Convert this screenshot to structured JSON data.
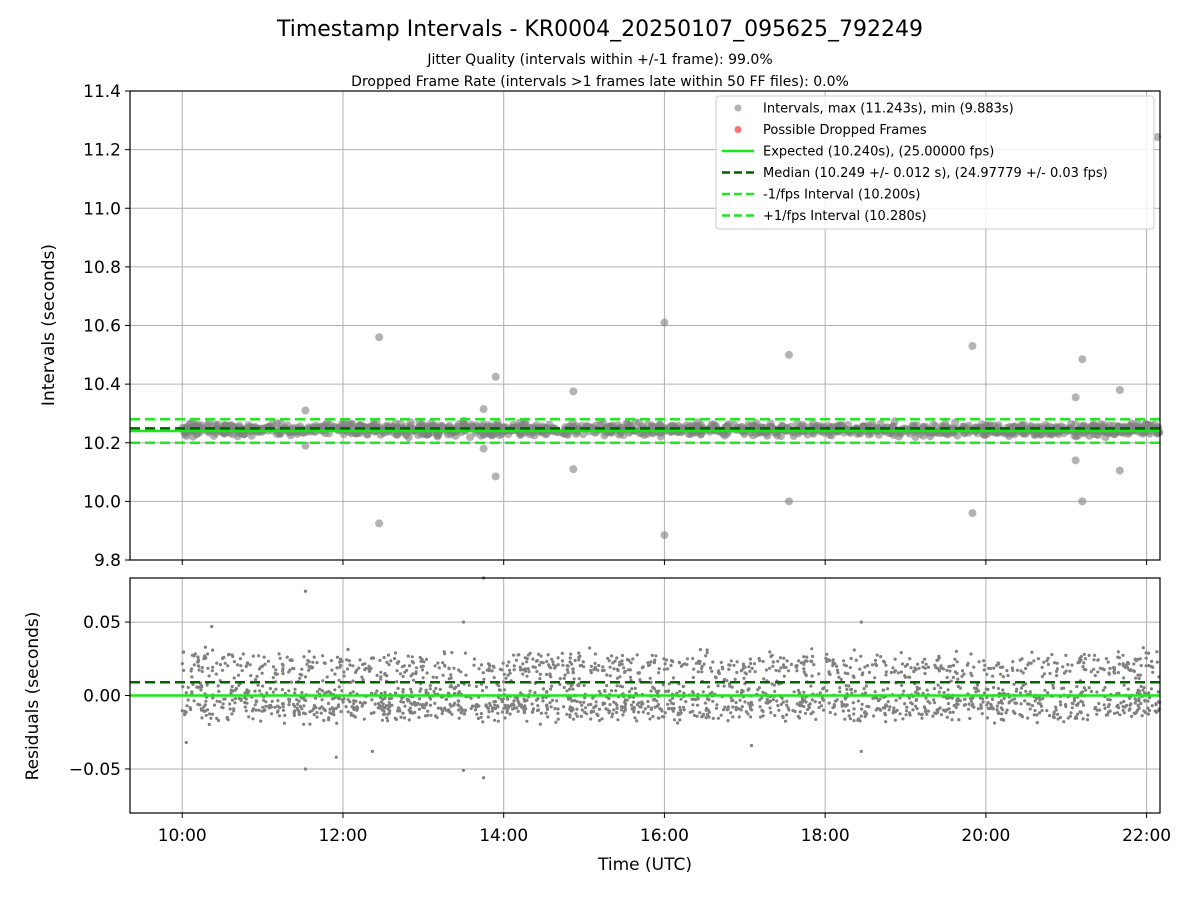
{
  "title": "Timestamp Intervals - KR0004_20250107_095625_792249",
  "subtitle_1": "Jitter Quality (intervals within +/-1 frame): 99.0%",
  "subtitle_2": "Dropped Frame Rate (intervals >1 frames late within 50 FF files): 0.0%",
  "colors": {
    "scatter": "#808080",
    "dropped": "#ff4d4d",
    "expected": "#17e817",
    "median": "#006400",
    "fps_interval": "#22e822",
    "grid": "#b0b0b0"
  },
  "chart_data": [
    {
      "type": "scatter",
      "panel": "top",
      "ylabel": "Intervals (seconds)",
      "xlabel": "",
      "ylim": [
        9.8,
        11.4
      ],
      "xlim": [
        "09:21",
        "22:10"
      ],
      "yticks": [
        "9.8",
        "10.0",
        "10.2",
        "10.4",
        "10.6",
        "10.8",
        "11.0",
        "11.2",
        "11.4"
      ],
      "grid": true,
      "legend_position": "upper-right",
      "legend": [
        {
          "key": "intervals",
          "label": "Intervals, max (11.243s), min (9.883s)"
        },
        {
          "key": "dropped",
          "label": "Possible Dropped Frames"
        },
        {
          "key": "expected",
          "label": "Expected (10.240s), (25.00000 fps)"
        },
        {
          "key": "median",
          "label": "Median (10.249 +/- 0.012 s), (24.97779 +/- 0.03 fps)"
        },
        {
          "key": "minus",
          "label": "-1/fps Interval (10.200s)"
        },
        {
          "key": "plus",
          "label": "+1/fps Interval (10.280s)"
        }
      ],
      "lines": {
        "expected": 10.24,
        "median": 10.249,
        "minus_fps": 10.2,
        "plus_fps": 10.28
      },
      "band": {
        "center": 10.245,
        "spread": 0.022,
        "x_start": "10:00",
        "x_end": "22:10"
      },
      "outliers": [
        {
          "x": "11:32",
          "y": 10.31
        },
        {
          "x": "11:32",
          "y": 10.19
        },
        {
          "x": "12:27",
          "y": 10.56
        },
        {
          "x": "12:27",
          "y": 9.925
        },
        {
          "x": "13:45",
          "y": 10.315
        },
        {
          "x": "13:45",
          "y": 10.18
        },
        {
          "x": "13:54",
          "y": 10.425
        },
        {
          "x": "13:54",
          "y": 10.085
        },
        {
          "x": "14:52",
          "y": 10.375
        },
        {
          "x": "14:52",
          "y": 10.11
        },
        {
          "x": "16:00",
          "y": 10.61
        },
        {
          "x": "16:00",
          "y": 9.885
        },
        {
          "x": "17:33",
          "y": 10.5
        },
        {
          "x": "17:33",
          "y": 10.0
        },
        {
          "x": "19:50",
          "y": 10.53
        },
        {
          "x": "19:50",
          "y": 9.96
        },
        {
          "x": "21:07",
          "y": 10.355
        },
        {
          "x": "21:07",
          "y": 10.14
        },
        {
          "x": "21:12",
          "y": 10.485
        },
        {
          "x": "21:12",
          "y": 10.0
        },
        {
          "x": "21:40",
          "y": 10.38
        },
        {
          "x": "21:40",
          "y": 10.105
        },
        {
          "x": "22:08",
          "y": 11.243
        }
      ]
    },
    {
      "type": "scatter",
      "panel": "bottom",
      "ylabel": "Residuals (seconds)",
      "xlabel": "Time (UTC)",
      "ylim": [
        -0.08,
        0.08
      ],
      "xlim": [
        "09:21",
        "22:10"
      ],
      "yticks": [
        "−0.05",
        "0.00",
        "0.05"
      ],
      "ytick_values": [
        -0.05,
        0,
        0.05
      ],
      "xticks": [
        "10:00",
        "12:00",
        "14:00",
        "16:00",
        "18:00",
        "20:00",
        "22:00"
      ],
      "grid": true,
      "lines": {
        "expected": 0.0,
        "median": 0.009
      },
      "bands": [
        {
          "center": 0.02,
          "spread": 0.012
        },
        {
          "center": 0.0,
          "spread": 0.012
        },
        {
          "center": -0.01,
          "spread": 0.01
        }
      ],
      "outliers": [
        {
          "x": "11:32",
          "y": 0.071
        },
        {
          "x": "11:32",
          "y": -0.05
        },
        {
          "x": "11:55",
          "y": -0.042
        },
        {
          "x": "12:22",
          "y": -0.038
        },
        {
          "x": "13:30",
          "y": 0.05
        },
        {
          "x": "13:30",
          "y": -0.051
        },
        {
          "x": "13:45",
          "y": 0.08
        },
        {
          "x": "13:45",
          "y": -0.056
        },
        {
          "x": "17:05",
          "y": -0.034
        },
        {
          "x": "18:27",
          "y": 0.05
        },
        {
          "x": "18:27",
          "y": -0.038
        },
        {
          "x": "10:03",
          "y": -0.032
        },
        {
          "x": "10:22",
          "y": 0.047
        }
      ]
    }
  ]
}
